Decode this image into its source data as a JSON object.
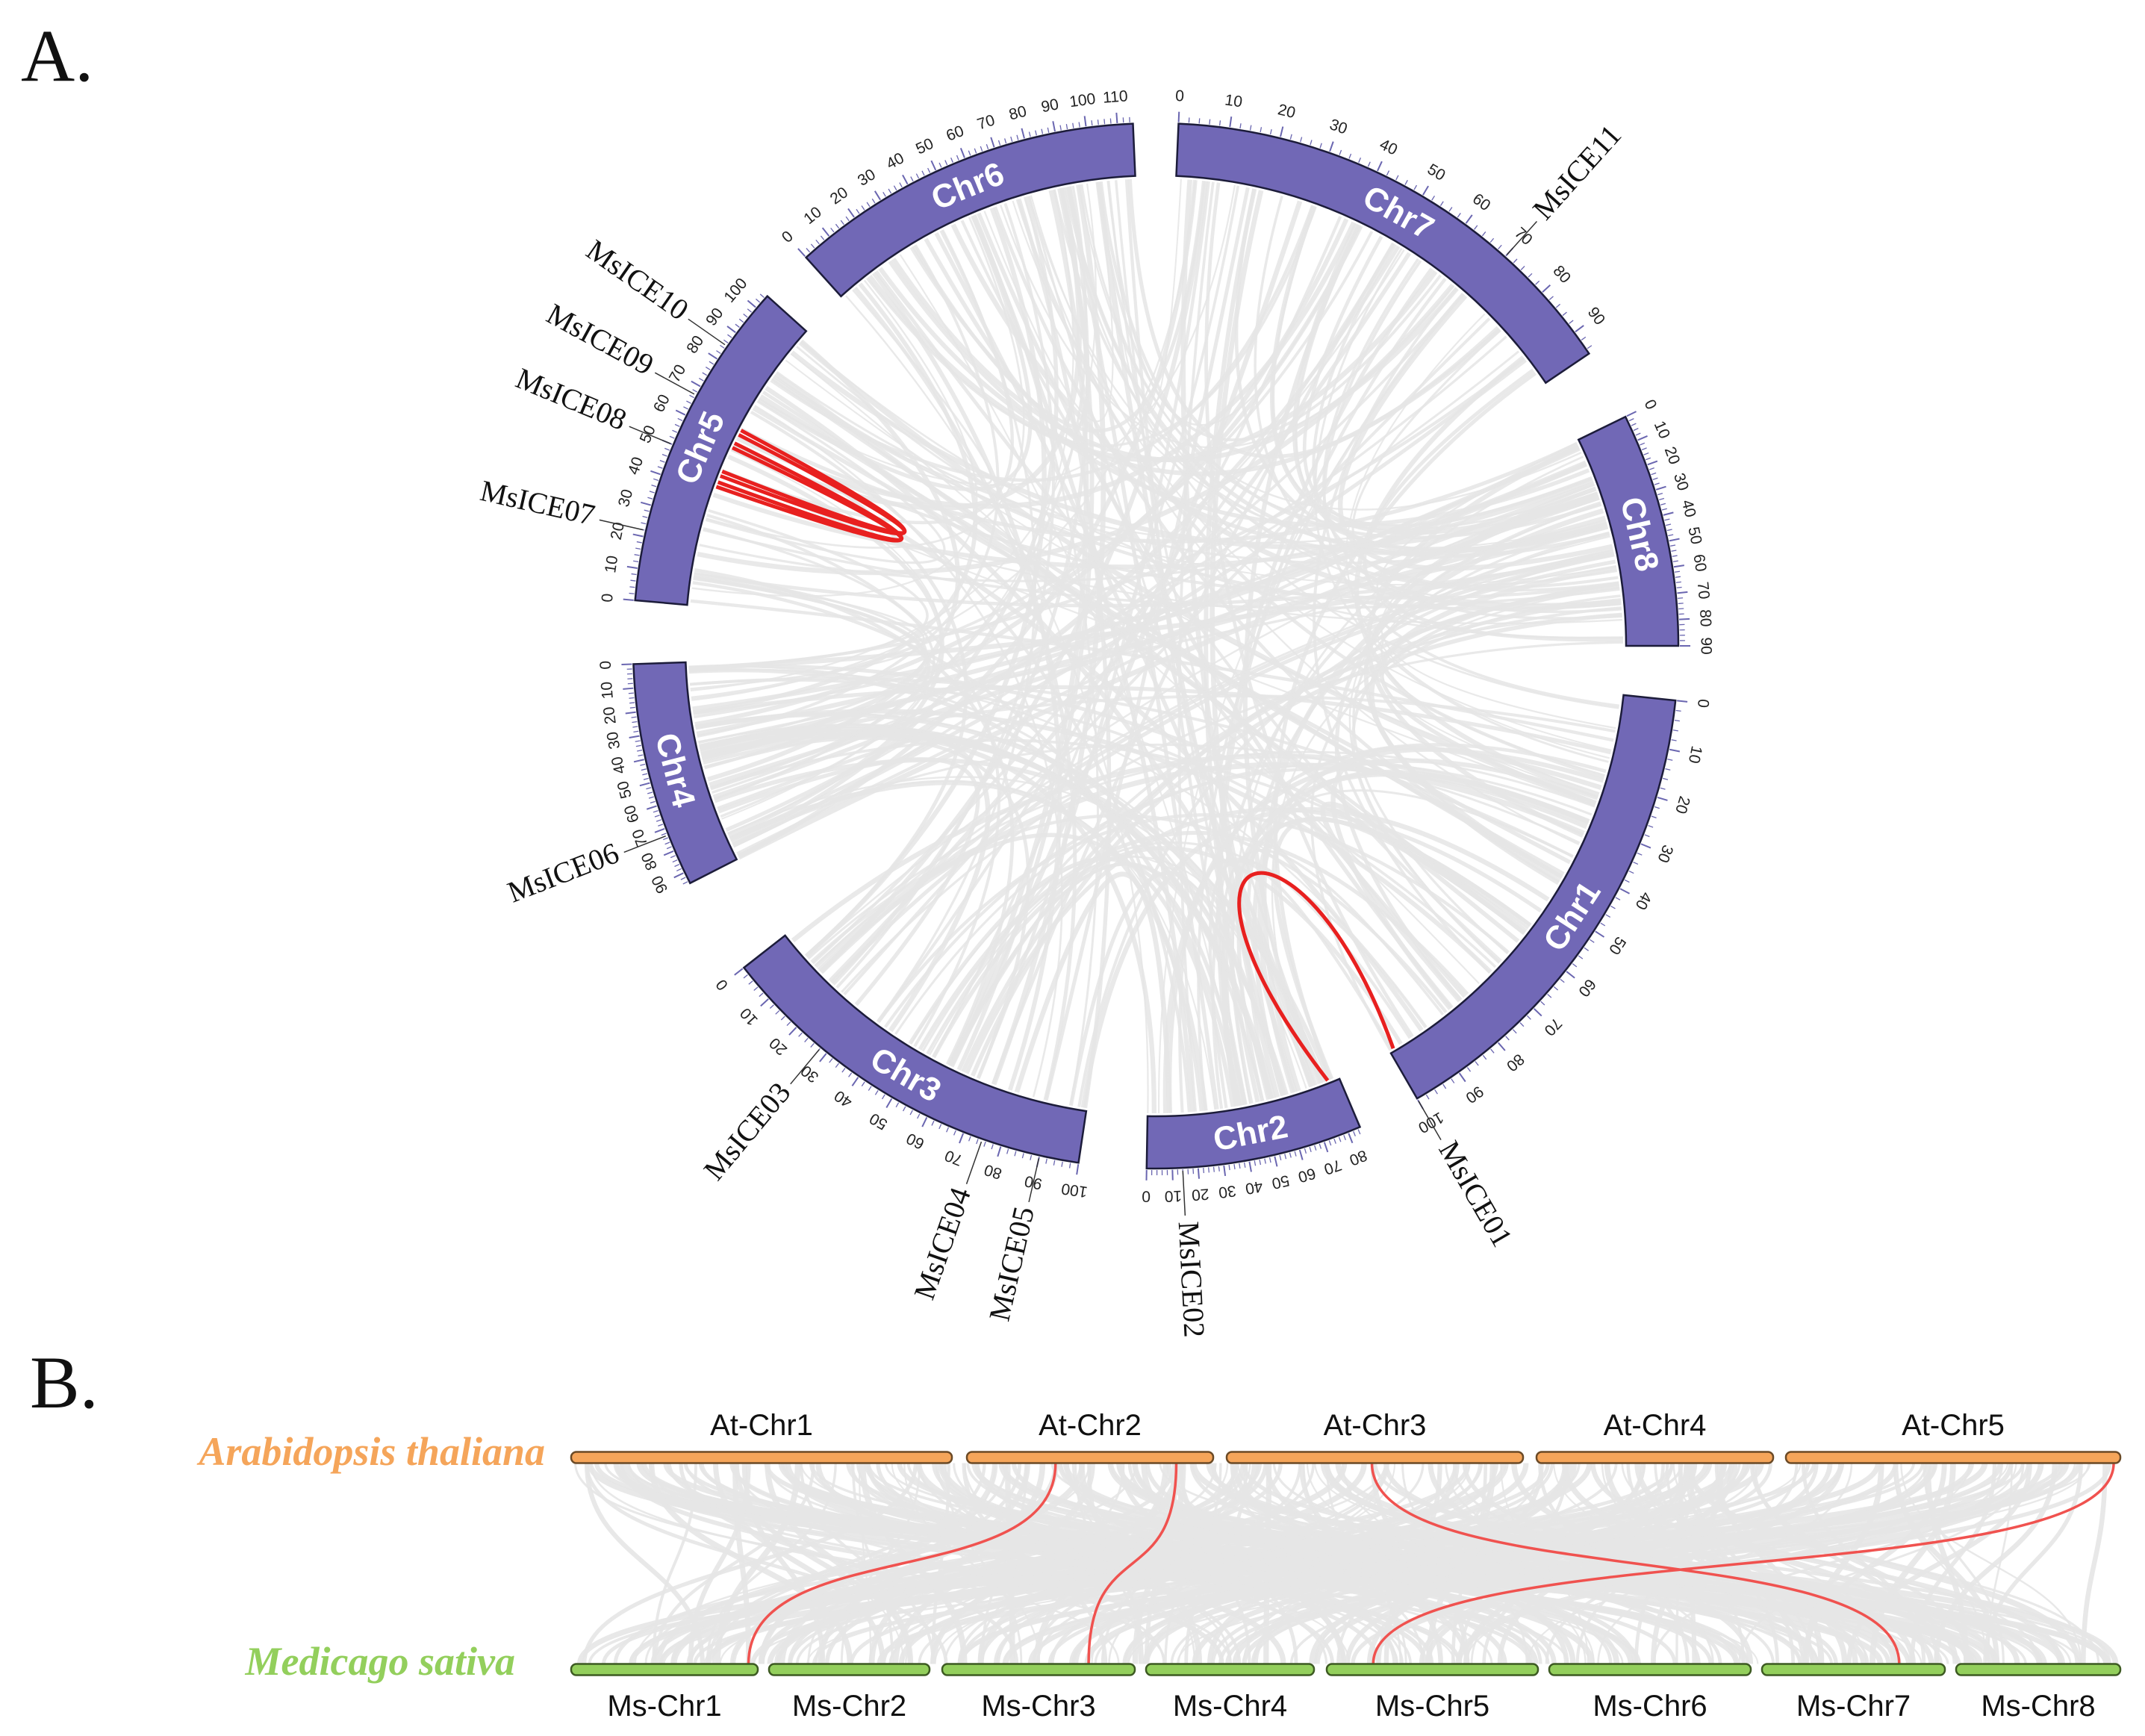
{
  "panel_a": {
    "label": "A.",
    "chromosomes": [
      {
        "name": "Chr1",
        "length": 100,
        "tick_labels": [
          "0",
          "10",
          "20",
          "30",
          "40",
          "50",
          "60",
          "70",
          "80",
          "90",
          "100"
        ]
      },
      {
        "name": "Chr2",
        "length": 85,
        "tick_labels": [
          "0",
          "10",
          "20",
          "30",
          "40",
          "50",
          "60",
          "70",
          "80"
        ]
      },
      {
        "name": "Chr3",
        "length": 100,
        "tick_labels": [
          "0",
          "10",
          "20",
          "30",
          "40",
          "50",
          "60",
          "70",
          "80",
          "90",
          "100"
        ]
      },
      {
        "name": "Chr4",
        "length": 95,
        "tick_labels": [
          "0",
          "10",
          "20",
          "30",
          "40",
          "50",
          "60",
          "70",
          "80",
          "90"
        ]
      },
      {
        "name": "Chr5",
        "length": 105,
        "tick_labels": [
          "0",
          "10",
          "20",
          "30",
          "40",
          "50",
          "60",
          "70",
          "80",
          "90",
          "100"
        ]
      },
      {
        "name": "Chr6",
        "length": 115,
        "tick_labels": [
          "0",
          "10",
          "20",
          "30",
          "40",
          "50",
          "60",
          "70",
          "80",
          "90",
          "100",
          "110"
        ]
      },
      {
        "name": "Chr7",
        "length": 95,
        "tick_labels": [
          "0",
          "10",
          "20",
          "30",
          "40",
          "50",
          "60",
          "70",
          "80",
          "90"
        ]
      },
      {
        "name": "Chr8",
        "length": 90,
        "tick_labels": [
          "0",
          "10",
          "20",
          "30",
          "40",
          "50",
          "60",
          "70",
          "80",
          "90"
        ]
      }
    ],
    "genes": [
      {
        "name": "MsICE01",
        "chr": "Chr1",
        "pos": 100
      },
      {
        "name": "MsICE02",
        "chr": "Chr2",
        "pos": 14
      },
      {
        "name": "MsICE03",
        "chr": "Chr3",
        "pos": 28
      },
      {
        "name": "MsICE04",
        "chr": "Chr3",
        "pos": 75
      },
      {
        "name": "MsICE05",
        "chr": "Chr3",
        "pos": 90
      },
      {
        "name": "MsICE06",
        "chr": "Chr4",
        "pos": 73
      },
      {
        "name": "MsICE07",
        "chr": "Chr5",
        "pos": 22
      },
      {
        "name": "MsICE08",
        "chr": "Chr5",
        "pos": 50
      },
      {
        "name": "MsICE09",
        "chr": "Chr5",
        "pos": 67
      },
      {
        "name": "MsICE10",
        "chr": "Chr5",
        "pos": 85
      },
      {
        "name": "MsICE11",
        "chr": "Chr7",
        "pos": 70
      }
    ],
    "highlight_links": [
      {
        "a": {
          "chr": "Chr5",
          "pos": 62
        },
        "b": {
          "chr": "Chr5",
          "pos": 48
        }
      },
      {
        "a": {
          "chr": "Chr5",
          "pos": 57
        },
        "b": {
          "chr": "Chr5",
          "pos": 44
        }
      },
      {
        "a": {
          "chr": "Chr1",
          "pos": 99
        },
        "b": {
          "chr": "Chr2",
          "pos": 80
        }
      }
    ],
    "colors": {
      "chromosome": "#7168b6",
      "link_background": "#e5e5e5",
      "link_highlight": "#e8201f"
    }
  },
  "panel_b": {
    "label": "B.",
    "species_top": {
      "name": "Arabidopsis thaliana",
      "color": "#f5a55a"
    },
    "species_bottom": {
      "name": "Medicago sativa",
      "color": "#93cf5c"
    },
    "top_chromosomes": [
      {
        "name": "At-Chr1",
        "length": 30.4
      },
      {
        "name": "At-Chr2",
        "length": 19.7
      },
      {
        "name": "At-Chr3",
        "length": 23.5
      },
      {
        "name": "At-Chr4",
        "length": 18.6
      },
      {
        "name": "At-Chr5",
        "length": 27.0
      }
    ],
    "bottom_chromosomes": [
      {
        "name": "Ms-Chr1"
      },
      {
        "name": "Ms-Chr2"
      },
      {
        "name": "Ms-Chr3"
      },
      {
        "name": "Ms-Chr4"
      },
      {
        "name": "Ms-Chr5"
      },
      {
        "name": "Ms-Chr6"
      },
      {
        "name": "Ms-Chr7"
      },
      {
        "name": "Ms-Chr8"
      }
    ],
    "highlight_links": [
      {
        "top": {
          "chr": "At-Chr2",
          "frac": 0.36
        },
        "bottom": {
          "chr": "Ms-Chr1",
          "frac": 0.95
        }
      },
      {
        "top": {
          "chr": "At-Chr2",
          "frac": 0.85
        },
        "bottom": {
          "chr": "Ms-Chr3",
          "frac": 0.76
        }
      },
      {
        "top": {
          "chr": "At-Chr3",
          "frac": 0.49
        },
        "bottom": {
          "chr": "Ms-Chr7",
          "frac": 0.75
        }
      },
      {
        "top": {
          "chr": "At-Chr5",
          "frac": 0.98
        },
        "bottom": {
          "chr": "Ms-Chr5",
          "frac": 0.22
        }
      }
    ],
    "colors": {
      "link_background": "#e6e6e6",
      "link_highlight": "#f0524f",
      "top_bar": "#f5a55a",
      "bottom_bar": "#93cf5c"
    }
  }
}
